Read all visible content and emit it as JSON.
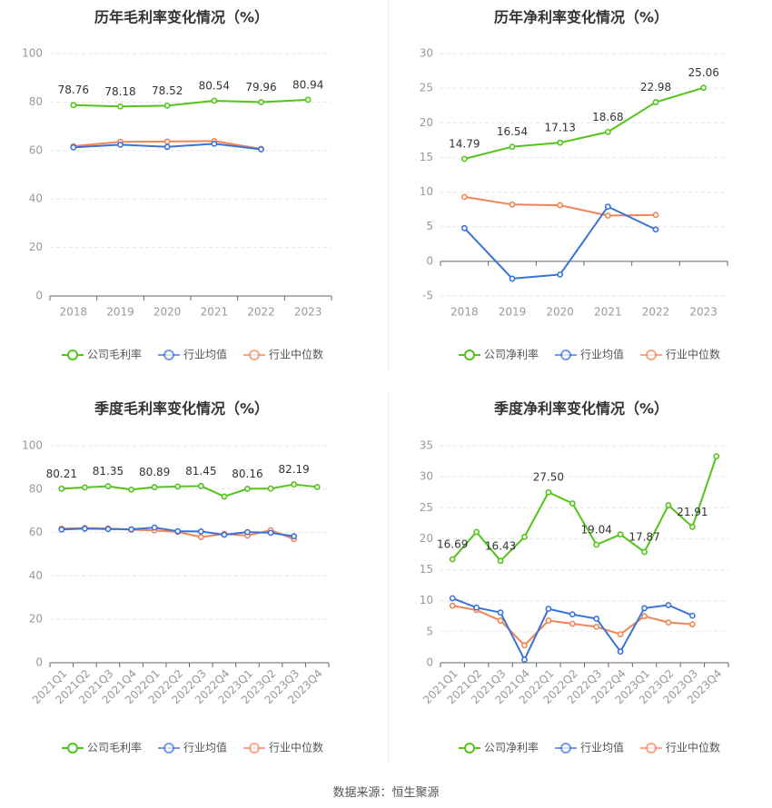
{
  "colors": {
    "company": "#52c41a",
    "industry_avg": "#3a73d8",
    "industry_median": "#f08457",
    "grid": "#e6e6e6",
    "axis": "#999999",
    "text": "#333333"
  },
  "footer": {
    "source": "数据来源：恒生聚源"
  },
  "chart_data": [
    {
      "type": "line",
      "title": "历年毛利率变化情况（%）",
      "categories": [
        "2018",
        "2019",
        "2020",
        "2021",
        "2022",
        "2023"
      ],
      "ylim": [
        0,
        100
      ],
      "yticks": [
        0,
        20,
        40,
        60,
        80,
        100
      ],
      "grid": true,
      "legend": "bottom-center",
      "series": [
        {
          "name": "公司毛利率",
          "color_key": "company",
          "values": [
            78.76,
            78.18,
            78.52,
            80.54,
            79.96,
            80.94
          ]
        },
        {
          "name": "行业均值",
          "color_key": "industry_avg",
          "values": [
            61.3,
            62.4,
            61.5,
            62.8,
            60.5,
            null
          ]
        },
        {
          "name": "行业中位数",
          "color_key": "industry_median",
          "values": [
            61.8,
            63.6,
            63.7,
            63.9,
            60.7,
            null
          ]
        }
      ],
      "labels": [
        "78.76",
        "78.18",
        "78.52",
        "80.54",
        "79.96",
        "80.94"
      ],
      "label_indices": [
        0,
        1,
        2,
        3,
        4,
        5
      ],
      "rotate_x": false
    },
    {
      "type": "line",
      "title": "历年净利率变化情况（%）",
      "categories": [
        "2018",
        "2019",
        "2020",
        "2021",
        "2022",
        "2023"
      ],
      "ylim": [
        -5,
        30
      ],
      "yticks": [
        -5,
        0,
        5,
        10,
        15,
        20,
        25,
        30
      ],
      "grid": true,
      "legend": "bottom-center",
      "series": [
        {
          "name": "公司净利率",
          "color_key": "company",
          "values": [
            14.79,
            16.54,
            17.13,
            18.68,
            22.98,
            25.06
          ]
        },
        {
          "name": "行业均值",
          "color_key": "industry_avg",
          "values": [
            4.8,
            -2.5,
            -1.9,
            7.9,
            4.6,
            null
          ]
        },
        {
          "name": "行业中位数",
          "color_key": "industry_median",
          "values": [
            9.3,
            8.2,
            8.1,
            6.6,
            6.7,
            null
          ]
        }
      ],
      "labels": [
        "14.79",
        "16.54",
        "17.13",
        "18.68",
        "22.98",
        "25.06"
      ],
      "label_indices": [
        0,
        1,
        2,
        3,
        4,
        5
      ],
      "rotate_x": false
    },
    {
      "type": "line",
      "title": "季度毛利率变化情况（%）",
      "categories": [
        "2021Q1",
        "2021Q2",
        "2021Q3",
        "2021Q4",
        "2022Q1",
        "2022Q2",
        "2022Q3",
        "2022Q4",
        "2023Q1",
        "2023Q2",
        "2023Q3",
        "2023Q4"
      ],
      "ylim": [
        0,
        100
      ],
      "yticks": [
        0,
        20,
        40,
        60,
        80,
        100
      ],
      "grid": true,
      "legend": "bottom-center",
      "series": [
        {
          "name": "公司毛利率",
          "color_key": "company",
          "values": [
            80.21,
            80.8,
            81.35,
            79.8,
            80.89,
            81.2,
            81.45,
            76.6,
            80.16,
            80.3,
            82.19,
            81.0
          ]
        },
        {
          "name": "行业均值",
          "color_key": "industry_avg",
          "values": [
            61.4,
            61.8,
            61.6,
            61.5,
            62.3,
            60.6,
            60.5,
            59.0,
            60.2,
            59.9,
            58.3,
            null
          ]
        },
        {
          "name": "行业中位数",
          "color_key": "industry_median",
          "values": [
            61.8,
            62.1,
            61.9,
            61.3,
            61.0,
            60.3,
            57.9,
            59.4,
            58.6,
            61.1,
            57.0,
            null
          ]
        }
      ],
      "labels": [
        "80.21",
        "81.35",
        "80.89",
        "81.45",
        "80.16",
        "82.19"
      ],
      "label_indices": [
        0,
        2,
        4,
        6,
        8,
        10
      ],
      "rotate_x": true
    },
    {
      "type": "line",
      "title": "季度净利率变化情况（%）",
      "categories": [
        "2021Q1",
        "2021Q2",
        "2021Q3",
        "2021Q4",
        "2022Q1",
        "2022Q2",
        "2022Q3",
        "2022Q4",
        "2023Q1",
        "2023Q2",
        "2023Q3",
        "2023Q4"
      ],
      "ylim": [
        0,
        35
      ],
      "yticks": [
        0,
        5,
        10,
        15,
        20,
        25,
        30,
        35
      ],
      "grid": true,
      "legend": "bottom-center",
      "series": [
        {
          "name": "公司净利率",
          "color_key": "company",
          "values": [
            16.69,
            21.1,
            16.43,
            20.3,
            27.5,
            25.7,
            19.04,
            20.7,
            17.87,
            25.4,
            21.91,
            33.3
          ]
        },
        {
          "name": "行业均值",
          "color_key": "industry_avg",
          "values": [
            10.4,
            8.9,
            8.1,
            0.5,
            8.7,
            7.8,
            7.1,
            1.8,
            8.8,
            9.3,
            7.6,
            null
          ]
        },
        {
          "name": "行业中位数",
          "color_key": "industry_median",
          "values": [
            9.2,
            8.5,
            6.8,
            2.8,
            6.8,
            6.3,
            5.8,
            4.6,
            7.5,
            6.5,
            6.2,
            null
          ]
        }
      ],
      "labels": [
        "16.69",
        "16.43",
        "27.50",
        "19.04",
        "17.87",
        "21.91"
      ],
      "label_indices": [
        0,
        2,
        4,
        6,
        8,
        10
      ],
      "rotate_x": true
    }
  ]
}
